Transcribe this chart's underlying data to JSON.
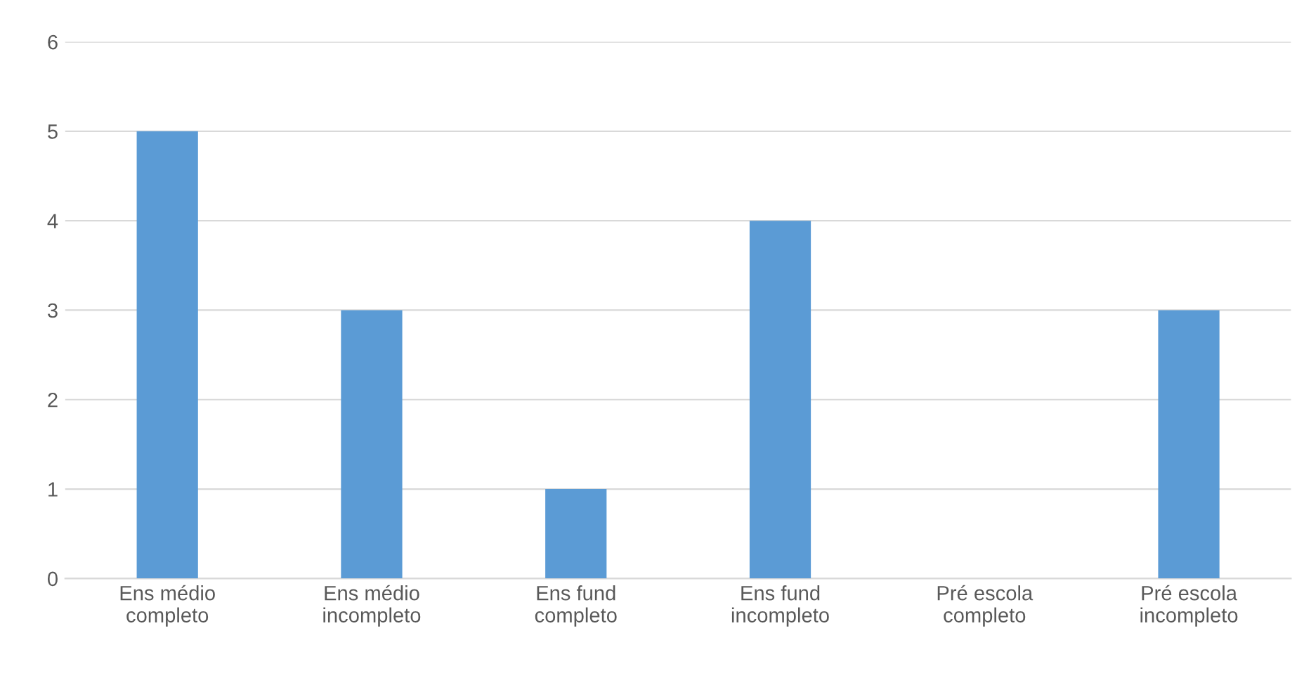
{
  "chart_data": {
    "type": "bar",
    "categories": [
      "Ens médio\ncompleto",
      "Ens médio\nincompleto",
      "Ens fund\ncompleto",
      "Ens fund\nincompleto",
      "Pré escola\ncompleto",
      "Pré escola\nincompleto"
    ],
    "values": [
      5,
      3,
      1,
      4,
      0,
      3
    ],
    "color": "#5b9bd5",
    "ylim": [
      0,
      6
    ],
    "yticks": [
      0,
      1,
      2,
      3,
      4,
      5,
      6
    ],
    "grid": "y",
    "legend": false
  }
}
